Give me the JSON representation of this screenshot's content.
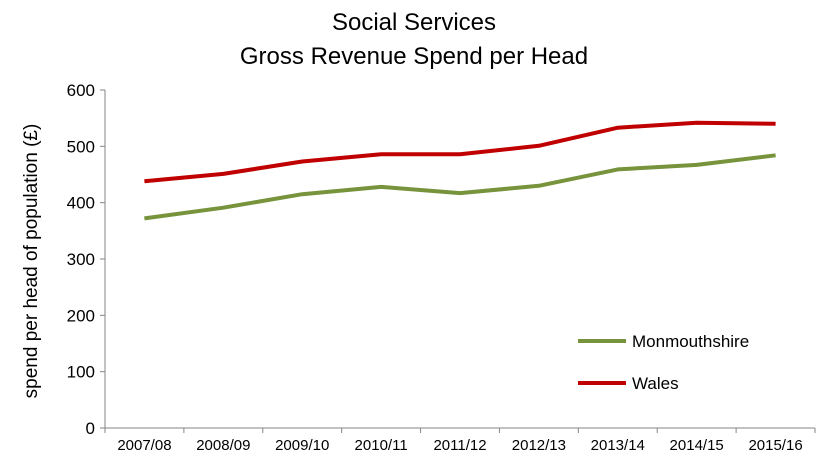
{
  "chart_data": {
    "type": "line",
    "title": [
      "Social Services",
      "Gross Revenue Spend per Head"
    ],
    "xlabel": "",
    "ylabel": "spend per head of population (£)",
    "categories": [
      "2007/08",
      "2008/09",
      "2009/10",
      "2010/11",
      "2011/12",
      "2012/13",
      "2013/14",
      "2014/15",
      "2015/16"
    ],
    "ylim": [
      0,
      600
    ],
    "yticks": [
      "0",
      "100",
      "200",
      "300",
      "400",
      "500",
      "600"
    ],
    "grid": false,
    "legend_position": "bottom-right",
    "series": [
      {
        "name": "Monmouthshire",
        "color": "#77933c",
        "values": [
          372,
          391,
          415,
          428,
          417,
          430,
          459,
          467,
          484
        ]
      },
      {
        "name": "Wales",
        "color": "#c00000",
        "values": [
          438,
          451,
          473,
          486,
          486,
          501,
          533,
          542,
          540
        ]
      }
    ]
  }
}
